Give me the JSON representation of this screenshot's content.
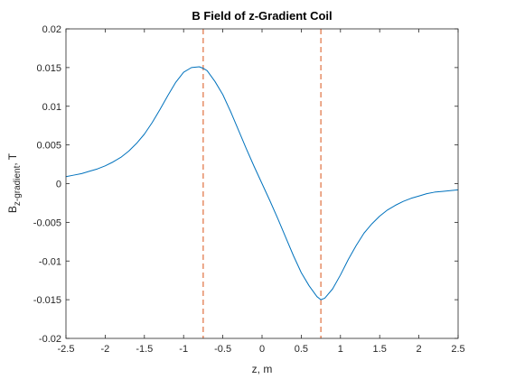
{
  "chart_data": {
    "type": "line",
    "title": "B Field of z-Gradient Coil",
    "xlabel": "z, m",
    "ylabel_main": "B",
    "ylabel_sub": "z-gradient",
    "ylabel_suffix": ", T",
    "xlim": [
      -2.5,
      2.5
    ],
    "ylim": [
      -0.02,
      0.02
    ],
    "xticks": [
      -2.5,
      -2,
      -1.5,
      -1,
      -0.5,
      0,
      0.5,
      1,
      1.5,
      2,
      2.5
    ],
    "xtick_labels": [
      "-2.5",
      "-2",
      "-1.5",
      "-1",
      "-0.5",
      "0",
      "0.5",
      "1",
      "1.5",
      "2",
      "2.5"
    ],
    "yticks": [
      -0.02,
      -0.015,
      -0.01,
      -0.005,
      0,
      0.005,
      0.01,
      0.015,
      0.02
    ],
    "ytick_labels": [
      "-0.02",
      "-0.015",
      "-0.01",
      "-0.005",
      "0",
      "0.005",
      "0.01",
      "0.015",
      "0.02"
    ],
    "grid": false,
    "series": [
      {
        "color": "#0072BD",
        "x": [
          -2.5,
          -2.4,
          -2.3,
          -2.2,
          -2.1,
          -2.0,
          -1.9,
          -1.8,
          -1.7,
          -1.6,
          -1.5,
          -1.4,
          -1.3,
          -1.2,
          -1.1,
          -1.0,
          -0.9,
          -0.8,
          -0.75,
          -0.7,
          -0.6,
          -0.5,
          -0.4,
          -0.3,
          -0.2,
          -0.1,
          0.0,
          0.1,
          0.2,
          0.3,
          0.4,
          0.5,
          0.6,
          0.7,
          0.75,
          0.8,
          0.9,
          1.0,
          1.1,
          1.2,
          1.3,
          1.4,
          1.5,
          1.6,
          1.7,
          1.8,
          1.9,
          2.0,
          2.1,
          2.2,
          2.3,
          2.4,
          2.5
        ],
        "y": [
          0.0009,
          0.0011,
          0.0013,
          0.0016,
          0.0019,
          0.0023,
          0.0028,
          0.0034,
          0.0042,
          0.0052,
          0.0064,
          0.0079,
          0.0096,
          0.0114,
          0.0131,
          0.0144,
          0.015,
          0.0151,
          0.0149,
          0.0146,
          0.0132,
          0.0115,
          0.0093,
          0.0069,
          0.0045,
          0.0022,
          0.0,
          -0.0022,
          -0.0045,
          -0.0069,
          -0.0093,
          -0.0115,
          -0.0132,
          -0.0146,
          -0.015,
          -0.0148,
          -0.0136,
          -0.0118,
          -0.0098,
          -0.008,
          -0.0064,
          -0.0052,
          -0.0042,
          -0.0034,
          -0.0028,
          -0.0023,
          -0.0019,
          -0.0016,
          -0.0013,
          -0.0011,
          -0.001,
          -0.0009,
          -0.0008
        ]
      }
    ],
    "reference_lines": [
      {
        "x": -0.75,
        "color": "#D95319",
        "style": "dashed"
      },
      {
        "x": 0.75,
        "color": "#D95319",
        "style": "dashed"
      }
    ]
  }
}
